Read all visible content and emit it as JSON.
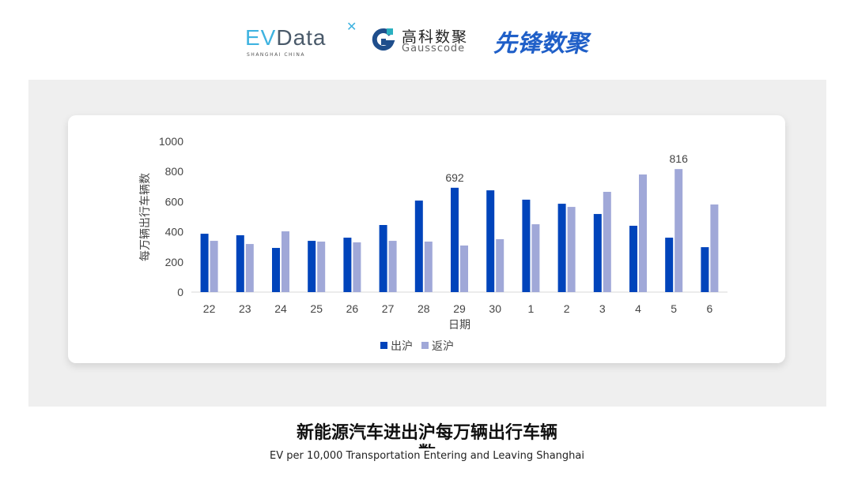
{
  "logos": {
    "evdata_ev": "EV",
    "evdata_rest": "Data",
    "evdata_sub": "SHANGHAI CHINA",
    "gauss_cn": "高科数聚",
    "gauss_en": "Gausscode",
    "xianfeng": "先锋数聚"
  },
  "colors": {
    "out": "#0044bb",
    "back": "#a0a8d8"
  },
  "footer": {
    "title": "新能源汽车进出沪每万辆出行车辆",
    "title_wrap": "数",
    "subtitle": "EV per 10,000 Transportation Entering and Leaving Shanghai"
  },
  "chart_data": {
    "type": "bar",
    "xlabel": "日期",
    "ylabel": "每万辆出行车辆数",
    "ylim": [
      0,
      1000
    ],
    "yticks": [
      0,
      200,
      400,
      600,
      800,
      1000
    ],
    "categories": [
      "22",
      "23",
      "24",
      "25",
      "26",
      "27",
      "28",
      "29",
      "30",
      "1",
      "2",
      "3",
      "4",
      "5",
      "6"
    ],
    "series": [
      {
        "name": "出沪",
        "values": [
          387,
          377,
          293,
          340,
          361,
          445,
          607,
          692,
          675,
          613,
          586,
          518,
          440,
          361,
          298
        ]
      },
      {
        "name": "返沪",
        "values": [
          340,
          319,
          403,
          335,
          330,
          340,
          335,
          309,
          351,
          450,
          565,
          665,
          780,
          816,
          581
        ]
      }
    ],
    "data_labels": [
      {
        "series": 0,
        "category": "29",
        "text": "692"
      },
      {
        "series": 1,
        "category": "5",
        "text": "816"
      }
    ],
    "legend": "bottom",
    "grid": false
  }
}
